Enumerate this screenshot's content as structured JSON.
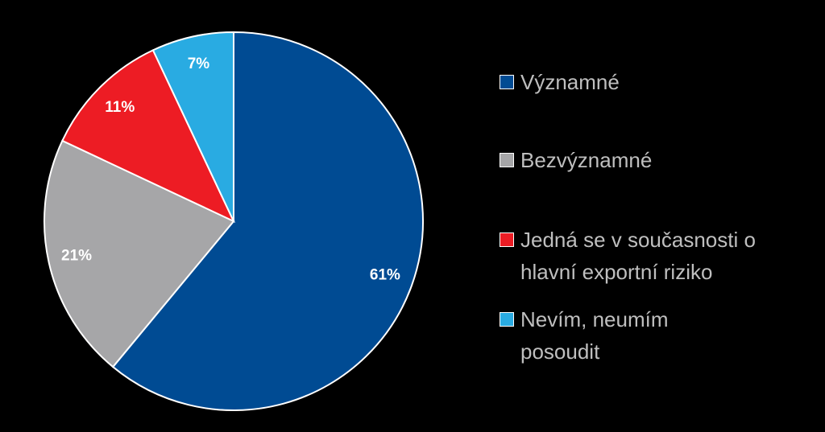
{
  "chart_data": {
    "type": "pie",
    "categories": [
      "Významné",
      "Bezvýznamné",
      "Jedná se v současnosti o hlavní exportní riziko",
      "Nevím, neumím posoudit"
    ],
    "values": [
      61,
      21,
      11,
      7
    ],
    "value_labels": [
      "61%",
      "21%",
      "11%",
      "7%"
    ],
    "colors": [
      "#004b93",
      "#a6a6a8",
      "#ed1c24",
      "#29abe2"
    ],
    "legend": "right"
  }
}
